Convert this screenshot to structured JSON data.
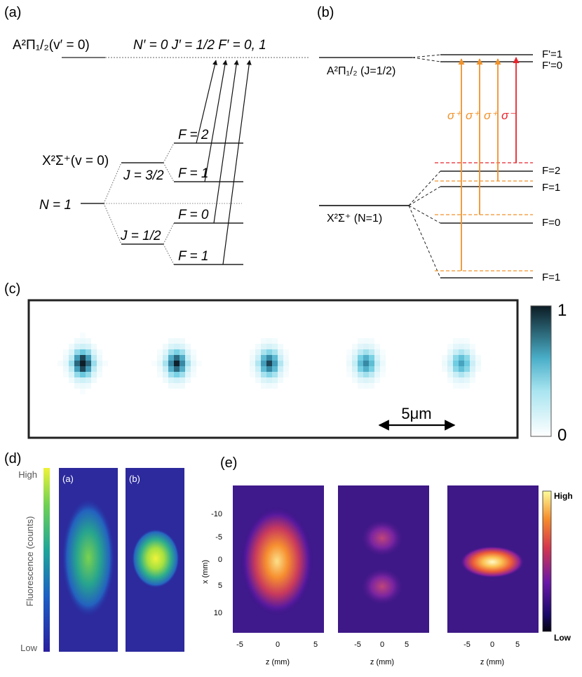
{
  "panel_a": {
    "label": "(a)",
    "excited_label": "A²Π₁/₂(v′ = 0)",
    "excited_numbers": "N′ = 0   J′ = 1/2   F′ = 0, 1",
    "ground_label": "X²Σ⁺(v = 0)",
    "n_label": "N = 1",
    "j_upper": "J = 3/2",
    "j_lower": "J = 1/2",
    "f_levels": [
      "F = 2",
      "F = 1",
      "F = 0",
      "F = 1"
    ]
  },
  "panel_b": {
    "label": "(b)",
    "excited_state": "A²Π₁/₂ (J=1/2)",
    "excited_levels": [
      "F'=1",
      "F'=0"
    ],
    "ground_state": "X²Σ⁺ (N=1)",
    "ground_levels": [
      "F=2",
      "F=1",
      "F=0",
      "F=1"
    ],
    "transitions": [
      "σ⁺",
      "σ⁺",
      "σ⁺",
      "σ⁻"
    ],
    "colors": {
      "sigma_plus": "#f0922b",
      "sigma_minus": "#e8242c"
    }
  },
  "panel_c": {
    "label": "(c)",
    "scale_bar": "5μm",
    "colorbar_max": "1",
    "colorbar_min": "0",
    "spot_intensity": [
      1.0,
      0.92,
      0.85,
      0.72,
      0.65
    ]
  },
  "panel_d": {
    "label": "(d)",
    "colorbar_high": "High",
    "colorbar_low": "Low",
    "axis_label": "Fluorescence (counts)",
    "sub_a": "(a)",
    "sub_b": "(b)"
  },
  "panel_e": {
    "label": "(e)",
    "y_axis_label": "x (mm)",
    "y_ticks": [
      "-10",
      "-5",
      "0",
      "5",
      "10"
    ],
    "x_axis_label": "z (mm)",
    "x_ticks": [
      "-5",
      "0",
      "5"
    ],
    "colorbar_high": "High",
    "colorbar_low": "Low"
  }
}
